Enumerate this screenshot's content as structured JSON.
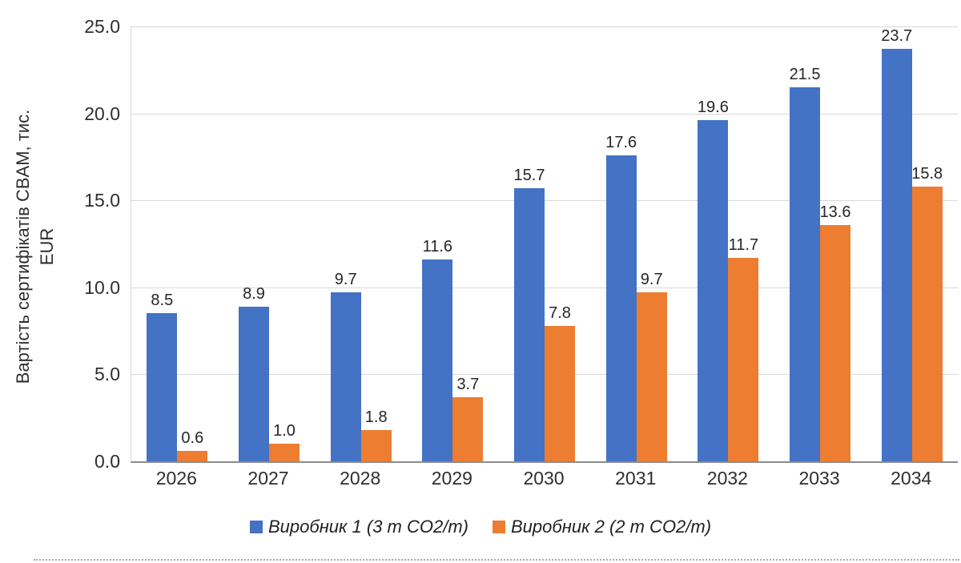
{
  "chart_data": {
    "type": "bar",
    "categories": [
      "2026",
      "2027",
      "2028",
      "2029",
      "2030",
      "2031",
      "2032",
      "2033",
      "2034"
    ],
    "series": [
      {
        "name": "Виробник 1 (3 т CO2/т)",
        "color": "#4472C4",
        "values": [
          8.5,
          8.9,
          9.7,
          11.6,
          15.7,
          17.6,
          19.6,
          21.5,
          23.7
        ]
      },
      {
        "name": "Виробник 2 (2 т CO2/т)",
        "color": "#ED7D31",
        "values": [
          0.6,
          1.0,
          1.8,
          3.7,
          7.8,
          9.7,
          11.7,
          13.6,
          15.8
        ]
      }
    ],
    "ylabel": {
      "line1": "Вартість сертифікатів CBAM, тис.",
      "line2": "EUR"
    },
    "ylim": [
      0,
      25
    ],
    "ytick_step": 5,
    "ytick_labels": [
      "0.0",
      "5.0",
      "10.0",
      "15.0",
      "20.0",
      "25.0"
    ],
    "value_label_decimals": 1,
    "grid": "horizontal",
    "legend_position": "bottom",
    "title": ""
  }
}
